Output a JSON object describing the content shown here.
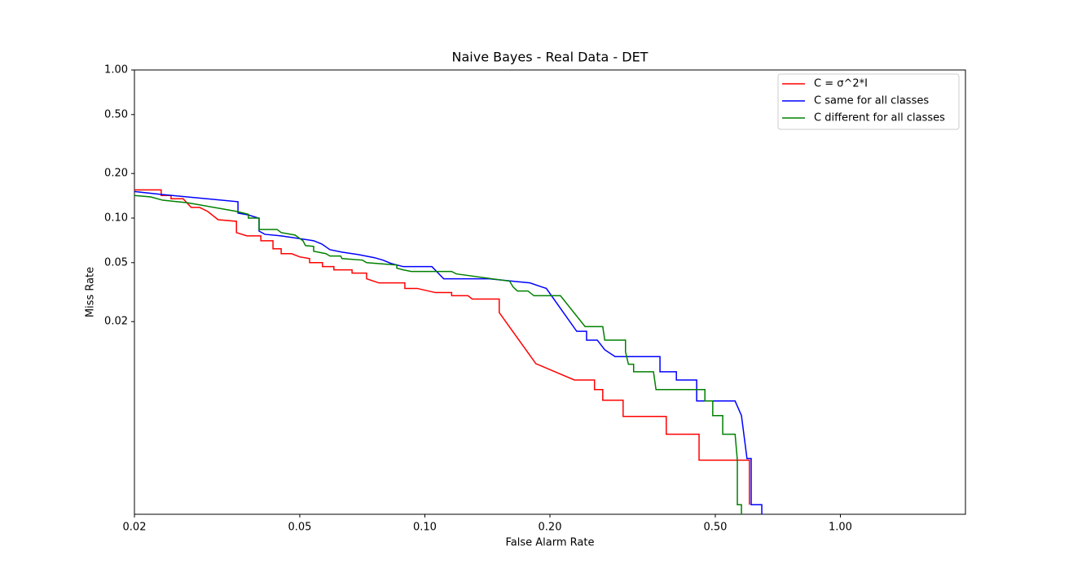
{
  "chart_data": {
    "type": "line",
    "title": "Naive Bayes - Real Data - DET",
    "xlabel": "False Alarm Rate",
    "ylabel": "Miss Rate",
    "xscale": "log",
    "yscale": "log",
    "xlim": [
      0.02,
      2
    ],
    "ylim": [
      0.001,
      1
    ],
    "xticks": [
      0.02,
      0.05,
      {
        "value": 0.1,
        "label": "0.10"
      },
      {
        "value": 0.2,
        "label": "0.20"
      },
      {
        "value": 0.5,
        "label": "0.50"
      },
      {
        "value": 1,
        "label": "1.00"
      }
    ],
    "yticks": [
      {
        "value": 1,
        "label": "1.00"
      },
      {
        "value": 0.5,
        "label": "0.50"
      },
      {
        "value": 0.2,
        "label": "0.20"
      },
      {
        "value": 0.1,
        "label": "0.10"
      },
      0.05,
      0.02
    ],
    "legend": "upper right",
    "series": [
      {
        "name": "C = σ^2*I",
        "color": "#ff0000",
        "x": [
          0.02,
          0.0232,
          0.0232,
          0.0245,
          0.0245,
          0.0262,
          0.0274,
          0.0287,
          0.03,
          0.0318,
          0.0352,
          0.0352,
          0.0373,
          0.0403,
          0.0403,
          0.0431,
          0.0431,
          0.0451,
          0.0451,
          0.0478,
          0.05,
          0.0528,
          0.0528,
          0.0567,
          0.0567,
          0.0604,
          0.0604,
          0.0668,
          0.0668,
          0.0724,
          0.0724,
          0.0775,
          0.0895,
          0.0895,
          0.0958,
          0.106,
          0.116,
          0.116,
          0.127,
          0.13,
          0.151,
          0.151,
          0.185,
          0.229,
          0.256,
          0.256,
          0.268,
          0.268,
          0.3,
          0.3,
          0.381,
          0.381,
          0.457,
          0.457,
          0.604,
          0.604
        ],
        "values": [
          0.155,
          0.155,
          0.142,
          0.142,
          0.135,
          0.135,
          0.118,
          0.118,
          0.111,
          0.0975,
          0.0951,
          0.0798,
          0.0758,
          0.0758,
          0.0703,
          0.0703,
          0.062,
          0.062,
          0.0575,
          0.0575,
          0.0547,
          0.0533,
          0.05,
          0.05,
          0.047,
          0.047,
          0.0447,
          0.0447,
          0.0425,
          0.0425,
          0.0389,
          0.0365,
          0.0365,
          0.0335,
          0.0335,
          0.0314,
          0.0314,
          0.0299,
          0.0299,
          0.0284,
          0.0284,
          0.023,
          0.0104,
          0.00807,
          0.00807,
          0.00695,
          0.00695,
          0.00589,
          0.00589,
          0.00458,
          0.00458,
          0.00347,
          0.00347,
          0.00232,
          0.00232,
          0.00116
        ]
      },
      {
        "name": "C same for all classes",
        "color": "#0000ff",
        "x": [
          0.02,
          0.0234,
          0.0355,
          0.0355,
          0.0376,
          0.0399,
          0.0399,
          0.0412,
          0.0451,
          0.054,
          0.0565,
          0.0591,
          0.0632,
          0.0692,
          0.0757,
          0.0793,
          0.0829,
          0.0887,
          0.104,
          0.111,
          0.143,
          0.179,
          0.191,
          0.196,
          0.232,
          0.245,
          0.245,
          0.26,
          0.271,
          0.287,
          0.368,
          0.368,
          0.403,
          0.403,
          0.451,
          0.451,
          0.558,
          0.578,
          0.596,
          0.61,
          0.61,
          0.647,
          0.647
        ],
        "values": [
          0.151,
          0.144,
          0.129,
          0.108,
          0.105,
          0.0996,
          0.0817,
          0.0777,
          0.0758,
          0.0703,
          0.0668,
          0.0612,
          0.0589,
          0.0567,
          0.054,
          0.052,
          0.0494,
          0.047,
          0.047,
          0.0389,
          0.0389,
          0.0365,
          0.0343,
          0.0335,
          0.0172,
          0.0172,
          0.015,
          0.015,
          0.0129,
          0.0116,
          0.0116,
          0.00916,
          0.00916,
          0.00807,
          0.00807,
          0.00582,
          0.00582,
          0.00464,
          0.00238,
          0.00238,
          0.00116,
          0.00116,
          0.001
        ]
      },
      {
        "name": "C different for all classes",
        "color": "#008000",
        "x": [
          0.02,
          0.0219,
          0.0234,
          0.0268,
          0.0352,
          0.0376,
          0.0376,
          0.0399,
          0.0399,
          0.0441,
          0.0451,
          0.0487,
          0.0509,
          0.0516,
          0.054,
          0.054,
          0.0578,
          0.0591,
          0.0627,
          0.0632,
          0.0708,
          0.0724,
          0.0811,
          0.0856,
          0.0856,
          0.0887,
          0.0928,
          0.116,
          0.119,
          0.16,
          0.163,
          0.167,
          0.177,
          0.183,
          0.212,
          0.243,
          0.268,
          0.271,
          0.304,
          0.304,
          0.309,
          0.318,
          0.318,
          0.355,
          0.36,
          0.472,
          0.472,
          0.493,
          0.493,
          0.521,
          0.521,
          0.558,
          0.565,
          0.565,
          0.578,
          0.578
        ],
        "values": [
          0.142,
          0.139,
          0.132,
          0.127,
          0.111,
          0.106,
          0.1,
          0.1,
          0.0838,
          0.0838,
          0.0798,
          0.0768,
          0.0703,
          0.0652,
          0.0644,
          0.0597,
          0.0575,
          0.0554,
          0.0554,
          0.0533,
          0.052,
          0.05,
          0.0488,
          0.0482,
          0.0459,
          0.0447,
          0.0436,
          0.0436,
          0.042,
          0.0375,
          0.0343,
          0.0322,
          0.0322,
          0.0299,
          0.0299,
          0.0185,
          0.0185,
          0.015,
          0.015,
          0.0125,
          0.0103,
          0.0103,
          0.00916,
          0.00916,
          0.00695,
          0.00695,
          0.00582,
          0.00582,
          0.00464,
          0.00464,
          0.00347,
          0.00347,
          0.00232,
          0.00116,
          0.00116,
          0.001
        ]
      }
    ]
  }
}
